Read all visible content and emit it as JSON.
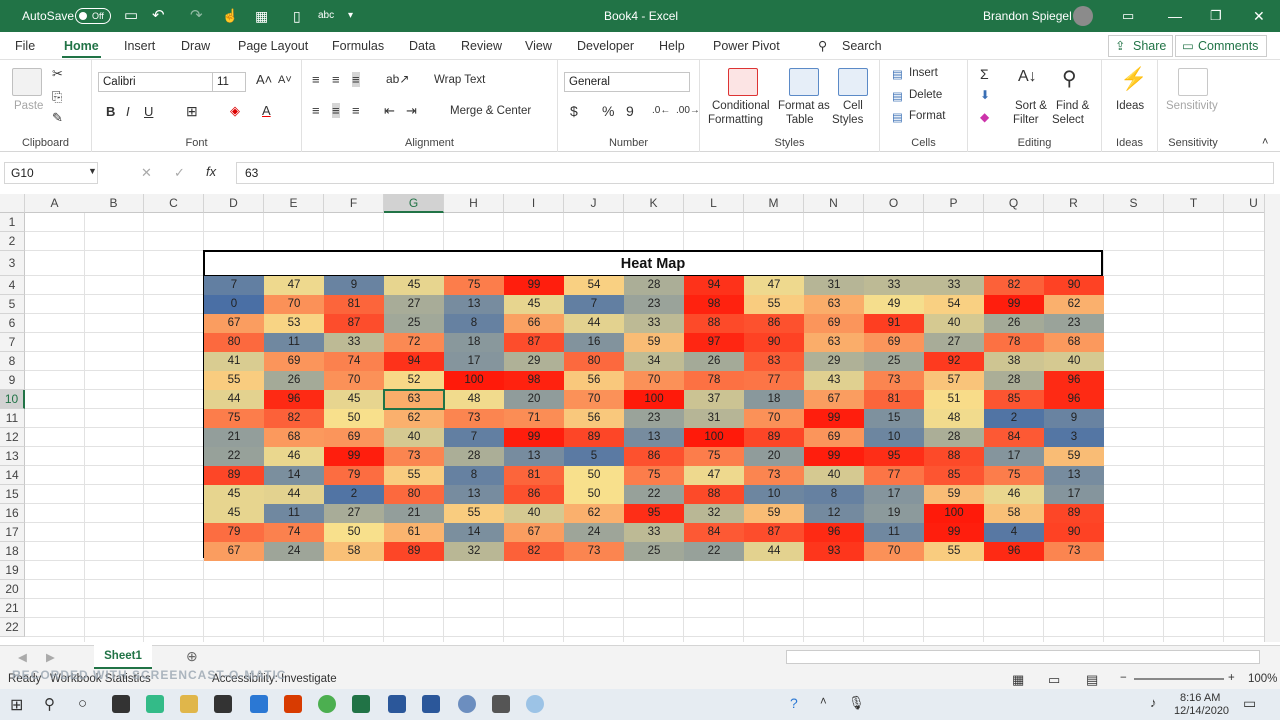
{
  "titlebar": {
    "autosave": "AutoSave",
    "toggle": "Off",
    "title": "Book4 - Excel",
    "user": "Brandon Spiegel"
  },
  "tabs": [
    "File",
    "Home",
    "Insert",
    "Draw",
    "Page Layout",
    "Formulas",
    "Data",
    "Review",
    "View",
    "Developer",
    "Help",
    "Power Pivot"
  ],
  "search": "Search",
  "share": "Share",
  "comments": "Comments",
  "ribbon": {
    "clipboard": {
      "paste": "Paste",
      "label": "Clipboard"
    },
    "font": {
      "name": "Calibri",
      "size": "11",
      "label": "Font"
    },
    "alignment": {
      "wrap": "Wrap Text",
      "merge": "Merge & Center",
      "label": "Alignment"
    },
    "number": {
      "format": "General",
      "label": "Number"
    },
    "styles": {
      "cond1": "Conditional",
      "cond2": "Formatting",
      "fmt1": "Format as",
      "fmt2": "Table",
      "cell1": "Cell",
      "cell2": "Styles",
      "label": "Styles"
    },
    "cells": {
      "insert": "Insert",
      "delete": "Delete",
      "format": "Format",
      "label": "Cells"
    },
    "editing": {
      "sort1": "Sort &",
      "sort2": "Filter",
      "find1": "Find &",
      "find2": "Select",
      "label": "Editing"
    },
    "ideas": {
      "btn": "Ideas",
      "label": "Ideas"
    },
    "sensitivity": {
      "btn": "Sensitivity",
      "label": "Sensitivity"
    }
  },
  "formula": {
    "cell": "G10",
    "value": "63"
  },
  "columns": [
    "A",
    "B",
    "C",
    "D",
    "E",
    "F",
    "G",
    "H",
    "I",
    "J",
    "K",
    "L",
    "M",
    "N",
    "O",
    "P",
    "Q",
    "R",
    "S",
    "T",
    "U"
  ],
  "rows": [
    "1",
    "2",
    "3",
    "4",
    "5",
    "6",
    "7",
    "8",
    "9",
    "10",
    "11",
    "12",
    "13",
    "14",
    "15",
    "16",
    "17",
    "18",
    "19",
    "20",
    "21",
    "22"
  ],
  "heatmap": {
    "title": "Heat Map",
    "values": [
      [
        7,
        47,
        9,
        45,
        75,
        99,
        54,
        28,
        94,
        47,
        31,
        33,
        33,
        82,
        90
      ],
      [
        0,
        70,
        81,
        27,
        13,
        45,
        7,
        23,
        98,
        55,
        63,
        49,
        54,
        99,
        62
      ],
      [
        67,
        53,
        87,
        25,
        8,
        66,
        44,
        33,
        88,
        86,
        69,
        91,
        40,
        26,
        23
      ],
      [
        80,
        11,
        33,
        72,
        18,
        87,
        16,
        59,
        97,
        90,
        63,
        69,
        27,
        78,
        68
      ],
      [
        41,
        69,
        74,
        94,
        17,
        29,
        80,
        34,
        26,
        83,
        29,
        25,
        92,
        38,
        40
      ],
      [
        55,
        26,
        70,
        52,
        100,
        98,
        56,
        70,
        78,
        77,
        43,
        73,
        57,
        28,
        96
      ],
      [
        44,
        96,
        45,
        63,
        48,
        20,
        70,
        100,
        37,
        18,
        67,
        81,
        51,
        85,
        96
      ],
      [
        75,
        82,
        50,
        62,
        73,
        71,
        56,
        23,
        31,
        70,
        99,
        15,
        48,
        2,
        9
      ],
      [
        21,
        68,
        69,
        40,
        7,
        99,
        89,
        13,
        100,
        89,
        69,
        10,
        28,
        84,
        3
      ],
      [
        22,
        46,
        99,
        73,
        28,
        13,
        5,
        86,
        75,
        20,
        99,
        95,
        88,
        17,
        59
      ],
      [
        89,
        14,
        79,
        55,
        8,
        81,
        50,
        75,
        47,
        73,
        40,
        77,
        85,
        75,
        13
      ],
      [
        45,
        44,
        2,
        80,
        13,
        86,
        50,
        22,
        88,
        10,
        8,
        17,
        59,
        46,
        17
      ],
      [
        45,
        11,
        27,
        21,
        55,
        40,
        62,
        95,
        32,
        59,
        12,
        19,
        100,
        58,
        89
      ],
      [
        79,
        74,
        50,
        61,
        14,
        67,
        24,
        33,
        84,
        87,
        96,
        11,
        99,
        4,
        90
      ],
      [
        67,
        24,
        58,
        89,
        32,
        82,
        73,
        25,
        22,
        44,
        93,
        70,
        55,
        96,
        73
      ]
    ],
    "colors": {
      "low": "#4a6fa5",
      "mid": "#f8e08c",
      "high": "#ff1a0a"
    }
  },
  "sheet": {
    "name": "Sheet1"
  },
  "status": {
    "ready": "Ready",
    "stats": "Workbook Statistics",
    "access": "Accessibility: Investigate",
    "zoom": "100%"
  },
  "clock": {
    "time": "8:16 AM",
    "date": "12/14/2020"
  },
  "watermark": "RECORDED WITH SCREENCAST-O-MATIC"
}
